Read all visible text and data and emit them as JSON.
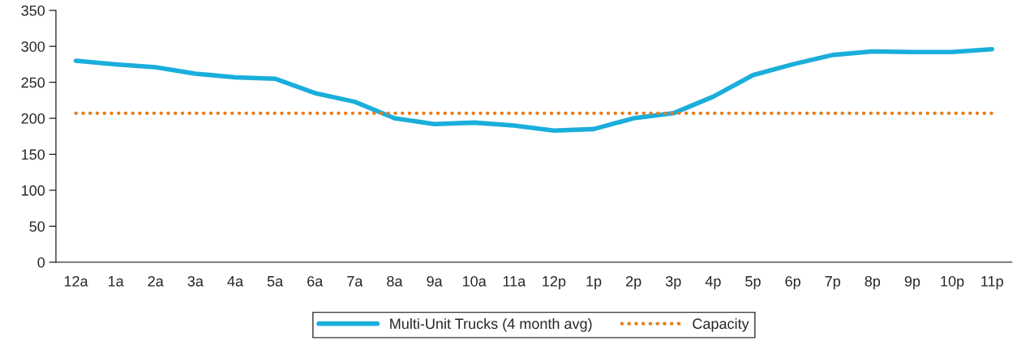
{
  "chart_data": {
    "type": "line",
    "categories": [
      "12a",
      "1a",
      "2a",
      "3a",
      "4a",
      "5a",
      "6a",
      "7a",
      "8a",
      "9a",
      "10a",
      "11a",
      "12p",
      "1p",
      "2p",
      "3p",
      "4p",
      "5p",
      "6p",
      "7p",
      "8p",
      "9p",
      "10p",
      "11p"
    ],
    "series": [
      {
        "name": "Multi-Unit Trucks (4 month avg)",
        "color": "#1aaedb",
        "line_style": "solid",
        "values": [
          280,
          275,
          271,
          262,
          257,
          255,
          235,
          223,
          200,
          192,
          194,
          190,
          183,
          185,
          200,
          207,
          230,
          260,
          275,
          288,
          293,
          292,
          292,
          296
        ]
      },
      {
        "name": "Capacity",
        "color": "#e87d1e",
        "line_style": "dotted",
        "values": [
          207,
          207,
          207,
          207,
          207,
          207,
          207,
          207,
          207,
          207,
          207,
          207,
          207,
          207,
          207,
          207,
          207,
          207,
          207,
          207,
          207,
          207,
          207,
          207
        ]
      }
    ],
    "ylim": [
      0,
      350
    ],
    "yticks": [
      0,
      50,
      100,
      150,
      200,
      250,
      300,
      350
    ],
    "grid": false,
    "legend": "bottom",
    "marker": "none"
  }
}
